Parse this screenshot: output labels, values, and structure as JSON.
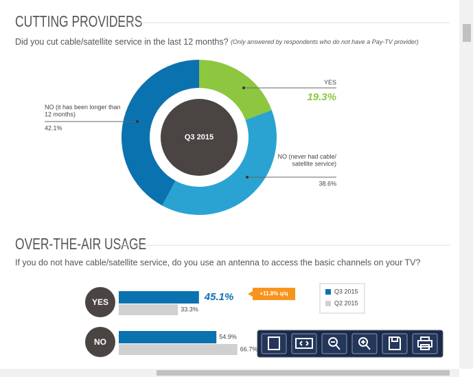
{
  "chart_data": [
    {
      "type": "donut",
      "title": "CUTTING PROVIDERS",
      "subtitle": "Did you cut cable/satellite service in the last 12 months?",
      "note": "(Only answered by respondents who do not have a Pay-TV provider)",
      "center_label": "Q3 2015",
      "categories": [
        "YES",
        "NO (never had cable/ satellite service)",
        "NO (it has been longer than 12 months)"
      ],
      "values": [
        19.3,
        38.6,
        42.1
      ],
      "value_labels": [
        "19.3%",
        "38.6%",
        "42.1%"
      ],
      "colors": [
        "#8dc63f",
        "#2aa3d3",
        "#0b72b0"
      ]
    },
    {
      "type": "bar",
      "title": "OVER-THE-AIR USAGE",
      "subtitle": "If you do not have cable/satellite service, do you use an antenna to access the basic channels on your TV?",
      "categories": [
        "YES",
        "NO"
      ],
      "series": [
        {
          "name": "Q3 2015",
          "color": "#0b72b0",
          "values": [
            45.1,
            54.9
          ],
          "value_labels": [
            "45.1%",
            "54.9%"
          ]
        },
        {
          "name": "Q2 2015",
          "color": "#d0d0d0",
          "values": [
            33.3,
            66.7
          ],
          "value_labels": [
            "33.3%",
            "66.7%"
          ]
        }
      ],
      "xlim": [
        0,
        100
      ],
      "annotation": "+11.8% q/q"
    }
  ]
}
